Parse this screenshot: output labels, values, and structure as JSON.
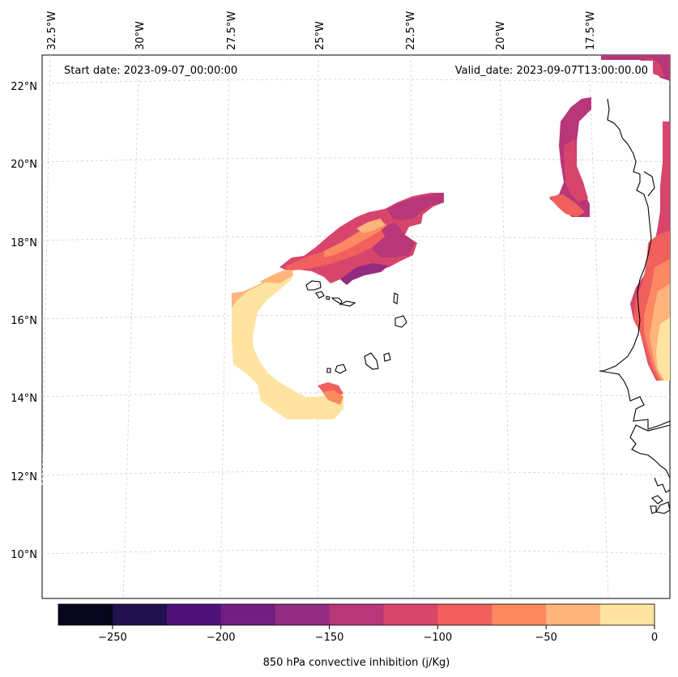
{
  "header": {
    "start_date": "Start date: 2023-09-07_00:00:00",
    "valid_date": "Valid_date: 2023-09-07T13:00:00.00"
  },
  "map": {
    "lon_labels": [
      "32.5°W",
      "30°W",
      "27.5°W",
      "25°W",
      "22.5°W",
      "20°W",
      "17.5°W"
    ],
    "lat_labels": [
      "22°N",
      "20°N",
      "18°N",
      "16°N",
      "14°N",
      "12°N",
      "10°N"
    ]
  },
  "colorbar": {
    "label": "850 hPa convective inhibition (j/Kg)",
    "tick_labels": [
      "−250",
      "−200",
      "−150",
      "−100",
      "−50",
      "0"
    ],
    "bins": [
      "#07061c",
      "#21114e",
      "#4f127b",
      "#721f81",
      "#932b80",
      "#b73779",
      "#d8456c",
      "#f1605d",
      "#fc8961",
      "#feb47b",
      "#fee4a0"
    ]
  },
  "colors": {
    "coast": "#000000",
    "grid": "#cccccc",
    "frame": "#000000"
  }
}
